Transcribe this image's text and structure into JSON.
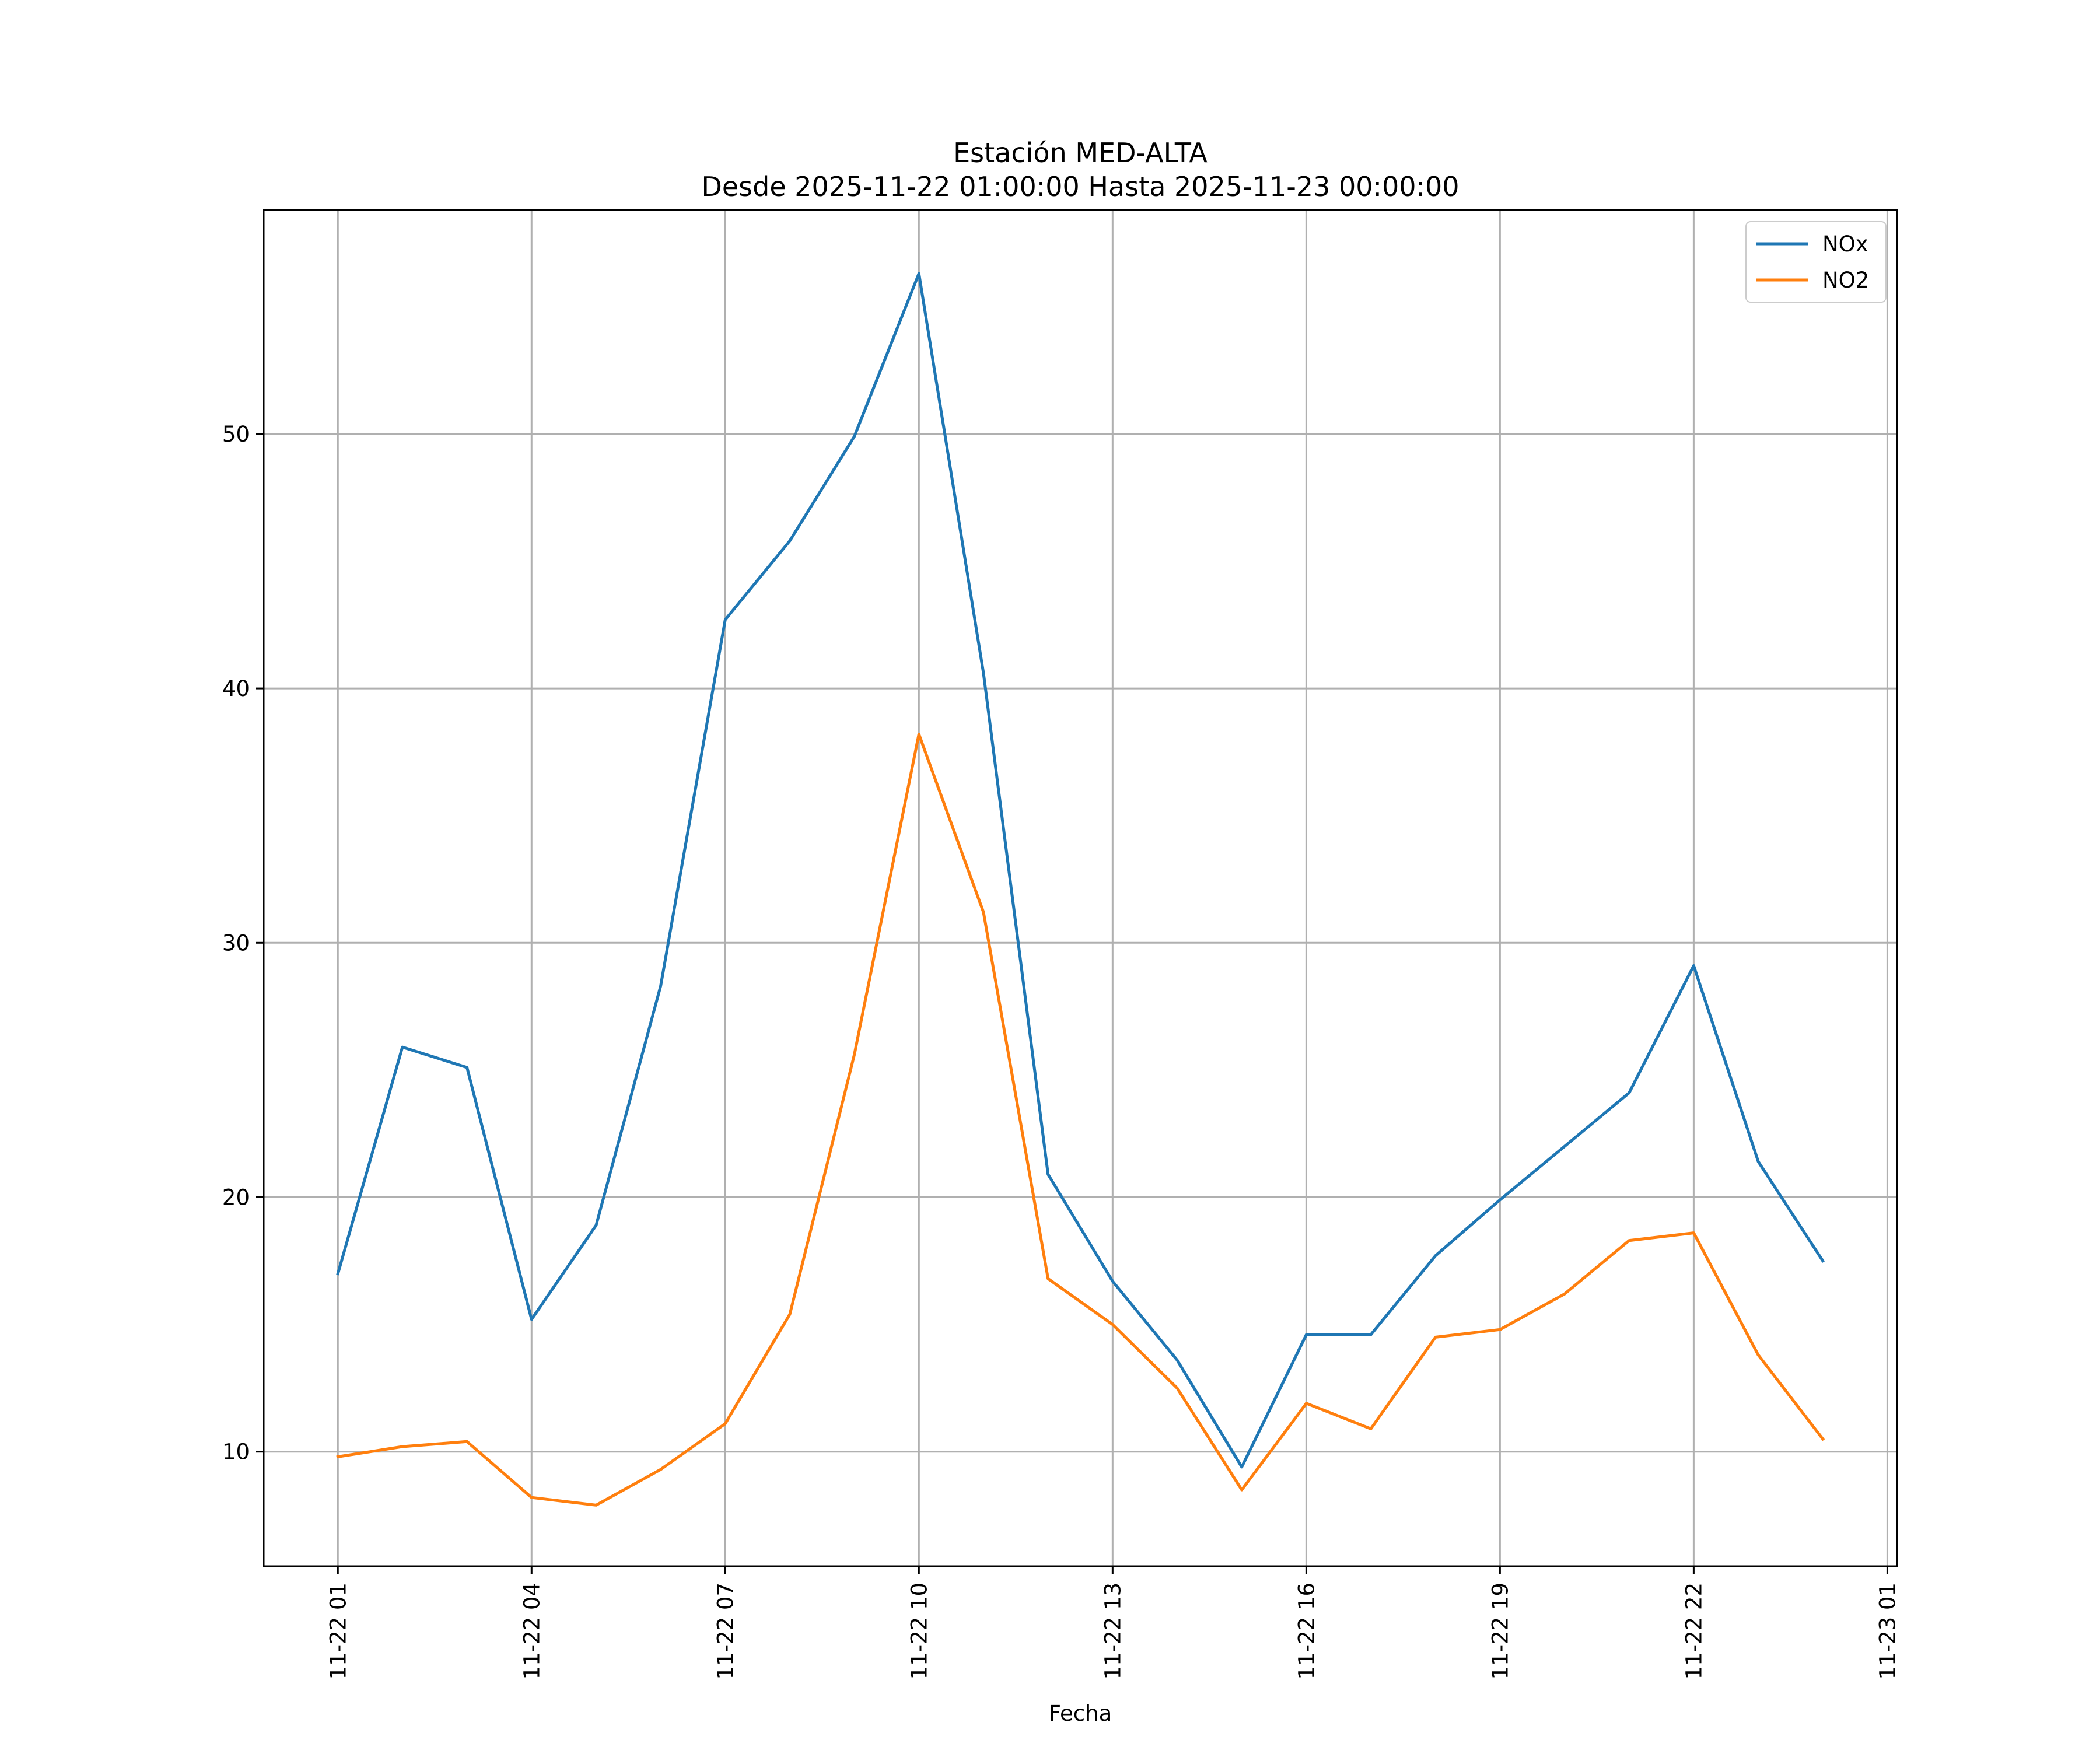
{
  "chart_data": {
    "type": "line",
    "title": "Estación MED-ALTA",
    "subtitle": "Desde 2025-11-22 01:00:00 Hasta 2025-11-23 00:00:00",
    "xlabel": "Fecha",
    "ylabel": "",
    "x_unit": "hour",
    "x": [
      "2025-11-22 01:00",
      "2025-11-22 02:00",
      "2025-11-22 03:00",
      "2025-11-22 04:00",
      "2025-11-22 05:00",
      "2025-11-22 06:00",
      "2025-11-22 07:00",
      "2025-11-22 08:00",
      "2025-11-22 09:00",
      "2025-11-22 10:00",
      "2025-11-22 11:00",
      "2025-11-22 12:00",
      "2025-11-22 13:00",
      "2025-11-22 14:00",
      "2025-11-22 15:00",
      "2025-11-22 16:00",
      "2025-11-22 17:00",
      "2025-11-22 18:00",
      "2025-11-22 19:00",
      "2025-11-22 20:00",
      "2025-11-22 21:00",
      "2025-11-22 22:00",
      "2025-11-22 23:00",
      "2025-11-23 00:00"
    ],
    "xlim": [
      "2025-11-21 23:51",
      "2025-11-23 01:09"
    ],
    "ylim": [
      5.5,
      58.8
    ],
    "x_ticks": [
      {
        "x": "2025-11-22 01:00",
        "label": "11-22 01"
      },
      {
        "x": "2025-11-22 04:00",
        "label": "11-22 04"
      },
      {
        "x": "2025-11-22 07:00",
        "label": "11-22 07"
      },
      {
        "x": "2025-11-22 10:00",
        "label": "11-22 10"
      },
      {
        "x": "2025-11-22 13:00",
        "label": "11-22 13"
      },
      {
        "x": "2025-11-22 16:00",
        "label": "11-22 16"
      },
      {
        "x": "2025-11-22 19:00",
        "label": "11-22 19"
      },
      {
        "x": "2025-11-22 22:00",
        "label": "11-22 22"
      },
      {
        "x": "2025-11-23 01:00",
        "label": "11-23 01"
      }
    ],
    "y_ticks": [
      10,
      20,
      30,
      40,
      50
    ],
    "grid": true,
    "legend_position": "top-right",
    "series": [
      {
        "name": "NOx",
        "color": "#1f77b4",
        "values": [
          17.0,
          25.9,
          25.1,
          15.2,
          18.9,
          28.3,
          42.7,
          45.8,
          49.9,
          56.3,
          40.6,
          20.9,
          16.7,
          13.6,
          9.4,
          14.6,
          14.6,
          17.7,
          19.9,
          22.0,
          24.1,
          29.1,
          21.4,
          17.5
        ]
      },
      {
        "name": "NO2",
        "color": "#ff7f0e",
        "values": [
          9.8,
          10.2,
          10.4,
          8.2,
          7.9,
          9.3,
          11.1,
          15.4,
          25.6,
          38.2,
          31.2,
          16.8,
          15.0,
          12.5,
          8.5,
          11.9,
          10.9,
          14.5,
          14.8,
          16.2,
          18.3,
          18.6,
          13.8,
          10.5
        ]
      }
    ]
  }
}
